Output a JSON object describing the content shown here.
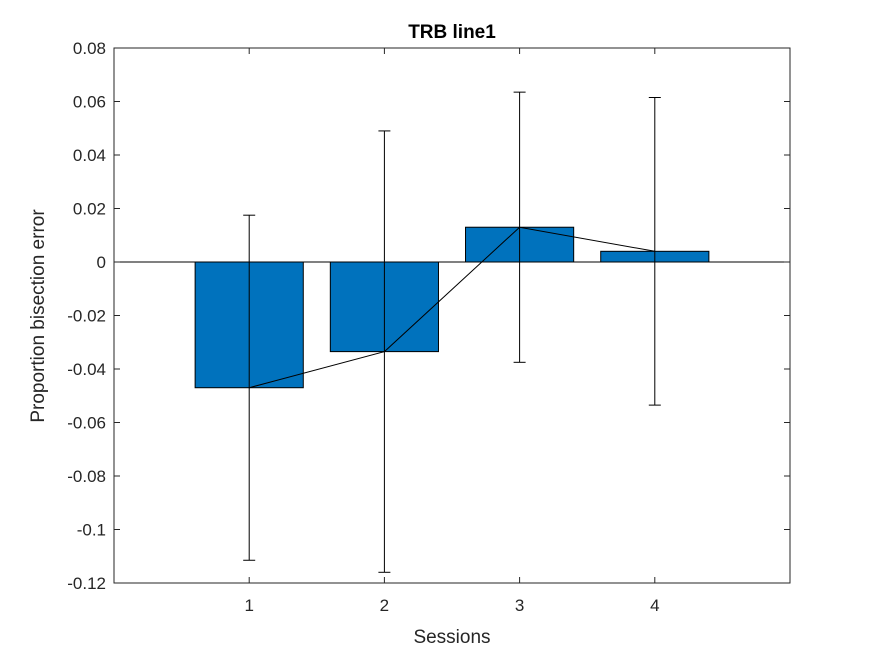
{
  "chart_data": {
    "type": "bar",
    "title": "TRB line1",
    "xlabel": "Sessions",
    "ylabel": "Proportion bisection error",
    "categories": [
      "1",
      "2",
      "3",
      "4"
    ],
    "values": [
      -0.047,
      -0.0335,
      0.013,
      0.004
    ],
    "error_upper": [
      0.0175,
      0.049,
      0.0635,
      0.0615
    ],
    "error_lower": [
      -0.1115,
      -0.116,
      -0.0375,
      -0.0535
    ],
    "xlim": [
      0,
      5
    ],
    "ylim": [
      -0.12,
      0.08
    ],
    "yticks": [
      "-0.12",
      "-0.1",
      "-0.08",
      "-0.06",
      "-0.04",
      "-0.02",
      "0",
      "0.02",
      "0.04",
      "0.06",
      "0.08"
    ],
    "ytick_values": [
      -0.12,
      -0.1,
      -0.08,
      -0.06,
      -0.04,
      -0.02,
      0,
      0.02,
      0.04,
      0.06,
      0.08
    ],
    "bar_color": "#0072BD",
    "line_color": "#000000",
    "grid": false,
    "legend": "none",
    "overlay": "line connecting bar means"
  }
}
